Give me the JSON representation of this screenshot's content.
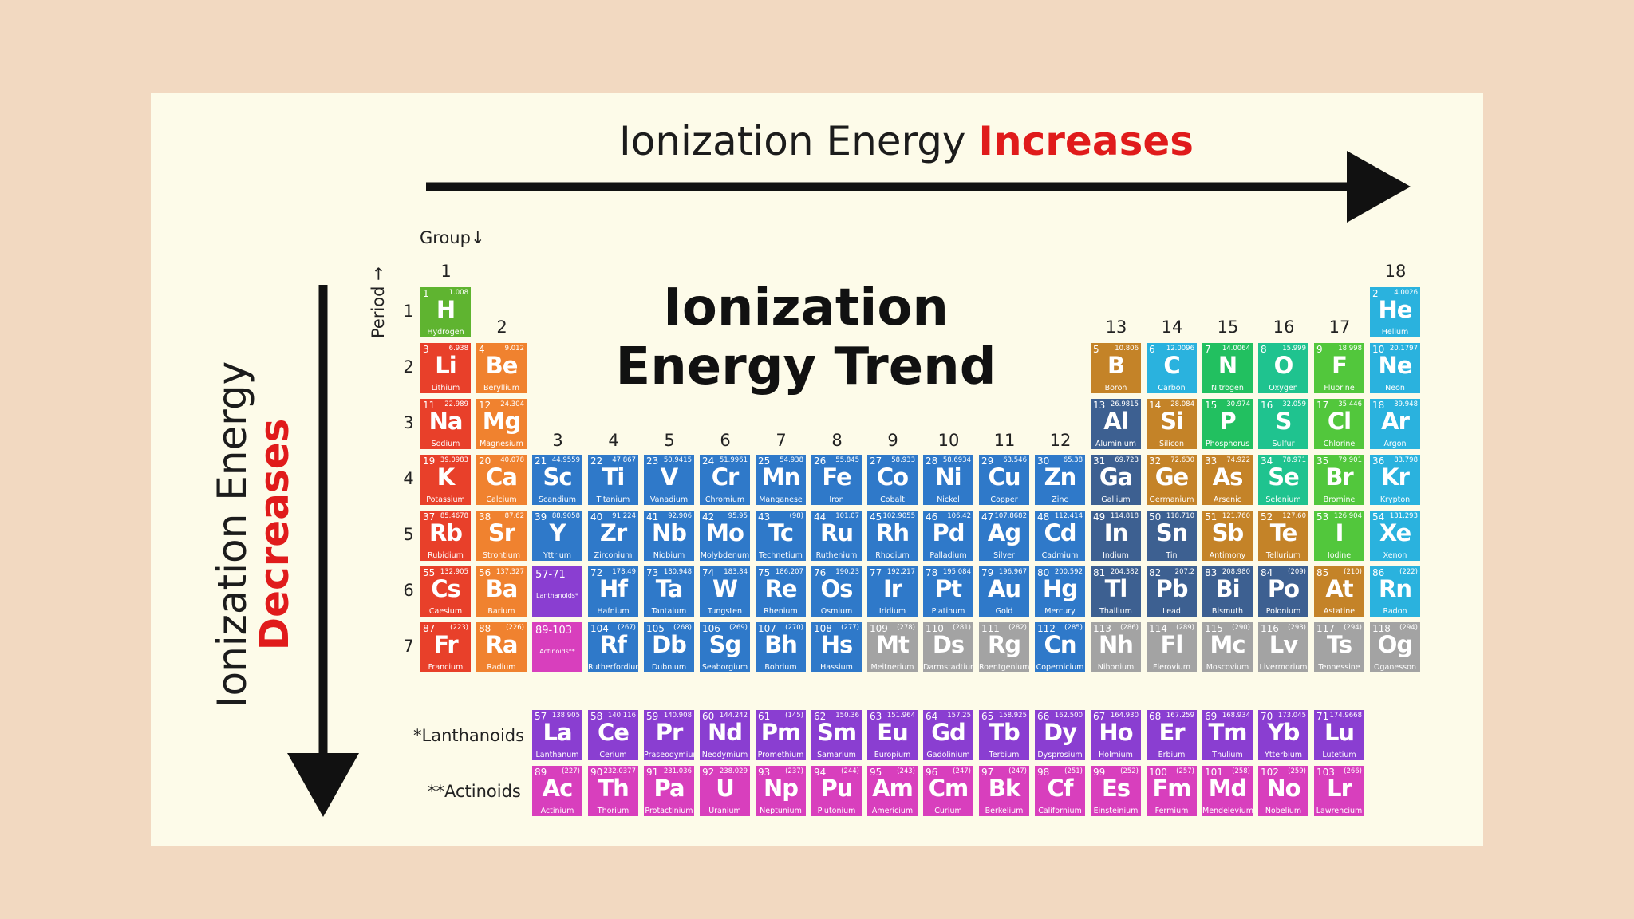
{
  "top_arrow_text": {
    "prefix": "Ionization Energy ",
    "emphasis": "Increases"
  },
  "side_arrow_text": {
    "prefix": "Ionization Energy",
    "emphasis": "Decreases"
  },
  "title_line1": "Ionization",
  "title_line2": "Energy Trend",
  "group_label": "Group",
  "period_label": "Period",
  "series_labels": {
    "lanthanoids": "*Lanthanoids",
    "actinoids": "**Actinoids"
  },
  "group_numbers": [
    "1",
    "2",
    "3",
    "4",
    "5",
    "6",
    "7",
    "8",
    "9",
    "10",
    "11",
    "12",
    "13",
    "14",
    "15",
    "16",
    "17",
    "18"
  ],
  "period_numbers": [
    "1",
    "2",
    "3",
    "4",
    "5",
    "6",
    "7"
  ],
  "colors": {
    "nonmetal": "#5fb430",
    "alkali": "#e8402a",
    "alkaline": "#f0822f",
    "transition": "#2f79c9",
    "metalloid": "#c48328",
    "post_transition": "#3d6091",
    "halogen": "#52c73c",
    "noble": "#2ab2de",
    "chalcogen": "#1fc38f",
    "pnictogen": "#22c060",
    "unknown": "#a3a3a3",
    "lanthanoid": "#8a3ed1",
    "actinoid": "#d83fbd",
    "arrow": "#111111",
    "accent": "#e01b1b"
  },
  "placeholders": [
    {
      "label": "57-71",
      "sub": "Lanthanoids*",
      "type": "lanthanoid"
    },
    {
      "label": "89-103",
      "sub": "Actinoids**",
      "type": "actinoid"
    }
  ],
  "elements": [
    {
      "n": "1",
      "s": "H",
      "name": "Hydrogen",
      "m": "1.008",
      "t": "nonmetal"
    },
    {
      "n": "2",
      "s": "He",
      "name": "Helium",
      "m": "4.0026",
      "t": "noble"
    },
    {
      "n": "3",
      "s": "Li",
      "name": "Lithium",
      "m": "6.938",
      "t": "alkali"
    },
    {
      "n": "4",
      "s": "Be",
      "name": "Beryllium",
      "m": "9.012",
      "t": "alkaline"
    },
    {
      "n": "5",
      "s": "B",
      "name": "Boron",
      "m": "10.806",
      "t": "metalloid"
    },
    {
      "n": "6",
      "s": "C",
      "name": "Carbon",
      "m": "12.0096",
      "t": "noble"
    },
    {
      "n": "7",
      "s": "N",
      "name": "Nitrogen",
      "m": "14.0064",
      "t": "pnictogen"
    },
    {
      "n": "8",
      "s": "O",
      "name": "Oxygen",
      "m": "15.999",
      "t": "chalcogen"
    },
    {
      "n": "9",
      "s": "F",
      "name": "Fluorine",
      "m": "18.998",
      "t": "halogen"
    },
    {
      "n": "10",
      "s": "Ne",
      "name": "Neon",
      "m": "20.1797",
      "t": "noble"
    },
    {
      "n": "11",
      "s": "Na",
      "name": "Sodium",
      "m": "22.989",
      "t": "alkali"
    },
    {
      "n": "12",
      "s": "Mg",
      "name": "Magnesium",
      "m": "24.304",
      "t": "alkaline"
    },
    {
      "n": "13",
      "s": "Al",
      "name": "Aluminium",
      "m": "26.9815",
      "t": "post_transition"
    },
    {
      "n": "14",
      "s": "Si",
      "name": "Silicon",
      "m": "28.084",
      "t": "metalloid"
    },
    {
      "n": "15",
      "s": "P",
      "name": "Phosphorus",
      "m": "30.974",
      "t": "pnictogen"
    },
    {
      "n": "16",
      "s": "S",
      "name": "Sulfur",
      "m": "32.059",
      "t": "chalcogen"
    },
    {
      "n": "17",
      "s": "Cl",
      "name": "Chlorine",
      "m": "35.446",
      "t": "halogen"
    },
    {
      "n": "18",
      "s": "Ar",
      "name": "Argon",
      "m": "39.948",
      "t": "noble"
    },
    {
      "n": "19",
      "s": "K",
      "name": "Potassium",
      "m": "39.0983",
      "t": "alkali"
    },
    {
      "n": "20",
      "s": "Ca",
      "name": "Calcium",
      "m": "40.078",
      "t": "alkaline"
    },
    {
      "n": "21",
      "s": "Sc",
      "name": "Scandium",
      "m": "44.9559",
      "t": "transition"
    },
    {
      "n": "22",
      "s": "Ti",
      "name": "Titanium",
      "m": "47.867",
      "t": "transition"
    },
    {
      "n": "23",
      "s": "V",
      "name": "Vanadium",
      "m": "50.9415",
      "t": "transition"
    },
    {
      "n": "24",
      "s": "Cr",
      "name": "Chromium",
      "m": "51.9961",
      "t": "transition"
    },
    {
      "n": "25",
      "s": "Mn",
      "name": "Manganese",
      "m": "54.938",
      "t": "transition"
    },
    {
      "n": "26",
      "s": "Fe",
      "name": "Iron",
      "m": "55.845",
      "t": "transition"
    },
    {
      "n": "27",
      "s": "Co",
      "name": "Cobalt",
      "m": "58.933",
      "t": "transition"
    },
    {
      "n": "28",
      "s": "Ni",
      "name": "Nickel",
      "m": "58.6934",
      "t": "transition"
    },
    {
      "n": "29",
      "s": "Cu",
      "name": "Copper",
      "m": "63.546",
      "t": "transition"
    },
    {
      "n": "30",
      "s": "Zn",
      "name": "Zinc",
      "m": "65.38",
      "t": "transition"
    },
    {
      "n": "31",
      "s": "Ga",
      "name": "Gallium",
      "m": "69.723",
      "t": "post_transition"
    },
    {
      "n": "32",
      "s": "Ge",
      "name": "Germanium",
      "m": "72.630",
      "t": "metalloid"
    },
    {
      "n": "33",
      "s": "As",
      "name": "Arsenic",
      "m": "74.922",
      "t": "metalloid"
    },
    {
      "n": "34",
      "s": "Se",
      "name": "Selenium",
      "m": "78.971",
      "t": "chalcogen"
    },
    {
      "n": "35",
      "s": "Br",
      "name": "Bromine",
      "m": "79.901",
      "t": "halogen"
    },
    {
      "n": "36",
      "s": "Kr",
      "name": "Krypton",
      "m": "83.798",
      "t": "noble"
    },
    {
      "n": "37",
      "s": "Rb",
      "name": "Rubidium",
      "m": "85.4678",
      "t": "alkali"
    },
    {
      "n": "38",
      "s": "Sr",
      "name": "Strontium",
      "m": "87.62",
      "t": "alkaline"
    },
    {
      "n": "39",
      "s": "Y",
      "name": "Yttrium",
      "m": "88.9058",
      "t": "transition"
    },
    {
      "n": "40",
      "s": "Zr",
      "name": "Zirconium",
      "m": "91.224",
      "t": "transition"
    },
    {
      "n": "41",
      "s": "Nb",
      "name": "Niobium",
      "m": "92.906",
      "t": "transition"
    },
    {
      "n": "42",
      "s": "Mo",
      "name": "Molybdenum",
      "m": "95.95",
      "t": "transition"
    },
    {
      "n": "43",
      "s": "Tc",
      "name": "Technetium",
      "m": "(98)",
      "t": "transition"
    },
    {
      "n": "44",
      "s": "Ru",
      "name": "Ruthenium",
      "m": "101.07",
      "t": "transition"
    },
    {
      "n": "45",
      "s": "Rh",
      "name": "Rhodium",
      "m": "102.9055",
      "t": "transition"
    },
    {
      "n": "46",
      "s": "Pd",
      "name": "Palladium",
      "m": "106.42",
      "t": "transition"
    },
    {
      "n": "47",
      "s": "Ag",
      "name": "Silver",
      "m": "107.8682",
      "t": "transition"
    },
    {
      "n": "48",
      "s": "Cd",
      "name": "Cadmium",
      "m": "112.414",
      "t": "transition"
    },
    {
      "n": "49",
      "s": "In",
      "name": "Indium",
      "m": "114.818",
      "t": "post_transition"
    },
    {
      "n": "50",
      "s": "Sn",
      "name": "Tin",
      "m": "118.710",
      "t": "post_transition"
    },
    {
      "n": "51",
      "s": "Sb",
      "name": "Antimony",
      "m": "121.760",
      "t": "metalloid"
    },
    {
      "n": "52",
      "s": "Te",
      "name": "Tellurium",
      "m": "127.60",
      "t": "metalloid"
    },
    {
      "n": "53",
      "s": "I",
      "name": "Iodine",
      "m": "126.904",
      "t": "halogen"
    },
    {
      "n": "54",
      "s": "Xe",
      "name": "Xenon",
      "m": "131.293",
      "t": "noble"
    },
    {
      "n": "55",
      "s": "Cs",
      "name": "Caesium",
      "m": "132.905",
      "t": "alkali"
    },
    {
      "n": "56",
      "s": "Ba",
      "name": "Barium",
      "m": "137.327",
      "t": "alkaline"
    },
    {
      "n": "72",
      "s": "Hf",
      "name": "Hafnium",
      "m": "178.49",
      "t": "transition"
    },
    {
      "n": "73",
      "s": "Ta",
      "name": "Tantalum",
      "m": "180.948",
      "t": "transition"
    },
    {
      "n": "74",
      "s": "W",
      "name": "Tungsten",
      "m": "183.84",
      "t": "transition"
    },
    {
      "n": "75",
      "s": "Re",
      "name": "Rhenium",
      "m": "186.207",
      "t": "transition"
    },
    {
      "n": "76",
      "s": "Os",
      "name": "Osmium",
      "m": "190.23",
      "t": "transition"
    },
    {
      "n": "77",
      "s": "Ir",
      "name": "Iridium",
      "m": "192.217",
      "t": "transition"
    },
    {
      "n": "78",
      "s": "Pt",
      "name": "Platinum",
      "m": "195.084",
      "t": "transition"
    },
    {
      "n": "79",
      "s": "Au",
      "name": "Gold",
      "m": "196.967",
      "t": "transition"
    },
    {
      "n": "80",
      "s": "Hg",
      "name": "Mercury",
      "m": "200.592",
      "t": "transition"
    },
    {
      "n": "81",
      "s": "Tl",
      "name": "Thallium",
      "m": "204.382",
      "t": "post_transition"
    },
    {
      "n": "82",
      "s": "Pb",
      "name": "Lead",
      "m": "207.2",
      "t": "post_transition"
    },
    {
      "n": "83",
      "s": "Bi",
      "name": "Bismuth",
      "m": "208.980",
      "t": "post_transition"
    },
    {
      "n": "84",
      "s": "Po",
      "name": "Polonium",
      "m": "(209)",
      "t": "post_transition"
    },
    {
      "n": "85",
      "s": "At",
      "name": "Astatine",
      "m": "(210)",
      "t": "metalloid"
    },
    {
      "n": "86",
      "s": "Rn",
      "name": "Radon",
      "m": "(222)",
      "t": "noble"
    },
    {
      "n": "87",
      "s": "Fr",
      "name": "Francium",
      "m": "(223)",
      "t": "alkali"
    },
    {
      "n": "88",
      "s": "Ra",
      "name": "Radium",
      "m": "(226)",
      "t": "alkaline"
    },
    {
      "n": "104",
      "s": "Rf",
      "name": "Rutherfordium",
      "m": "(267)",
      "t": "transition"
    },
    {
      "n": "105",
      "s": "Db",
      "name": "Dubnium",
      "m": "(268)",
      "t": "transition"
    },
    {
      "n": "106",
      "s": "Sg",
      "name": "Seaborgium",
      "m": "(269)",
      "t": "transition"
    },
    {
      "n": "107",
      "s": "Bh",
      "name": "Bohrium",
      "m": "(270)",
      "t": "transition"
    },
    {
      "n": "108",
      "s": "Hs",
      "name": "Hassium",
      "m": "(277)",
      "t": "transition"
    },
    {
      "n": "109",
      "s": "Mt",
      "name": "Meitnerium",
      "m": "(278)",
      "t": "unknown"
    },
    {
      "n": "110",
      "s": "Ds",
      "name": "Darmstadtium",
      "m": "(281)",
      "t": "unknown"
    },
    {
      "n": "111",
      "s": "Rg",
      "name": "Roentgenium",
      "m": "(282)",
      "t": "unknown"
    },
    {
      "n": "112",
      "s": "Cn",
      "name": "Copernicium",
      "m": "(285)",
      "t": "transition"
    },
    {
      "n": "113",
      "s": "Nh",
      "name": "Nihonium",
      "m": "(286)",
      "t": "unknown"
    },
    {
      "n": "114",
      "s": "Fl",
      "name": "Flerovium",
      "m": "(289)",
      "t": "unknown"
    },
    {
      "n": "115",
      "s": "Mc",
      "name": "Moscovium",
      "m": "(290)",
      "t": "unknown"
    },
    {
      "n": "116",
      "s": "Lv",
      "name": "Livermorium",
      "m": "(293)",
      "t": "unknown"
    },
    {
      "n": "117",
      "s": "Ts",
      "name": "Tennessine",
      "m": "(294)",
      "t": "unknown"
    },
    {
      "n": "118",
      "s": "Og",
      "name": "Oganesson",
      "m": "(294)",
      "t": "unknown"
    }
  ],
  "lanthanoids": [
    {
      "n": "57",
      "s": "La",
      "name": "Lanthanum",
      "m": "138.905"
    },
    {
      "n": "58",
      "s": "Ce",
      "name": "Cerium",
      "m": "140.116"
    },
    {
      "n": "59",
      "s": "Pr",
      "name": "Praseodymium",
      "m": "140.908"
    },
    {
      "n": "60",
      "s": "Nd",
      "name": "Neodymium",
      "m": "144.242"
    },
    {
      "n": "61",
      "s": "Pm",
      "name": "Promethium",
      "m": "(145)"
    },
    {
      "n": "62",
      "s": "Sm",
      "name": "Samarium",
      "m": "150.36"
    },
    {
      "n": "63",
      "s": "Eu",
      "name": "Europium",
      "m": "151.964"
    },
    {
      "n": "64",
      "s": "Gd",
      "name": "Gadolinium",
      "m": "157.25"
    },
    {
      "n": "65",
      "s": "Tb",
      "name": "Terbium",
      "m": "158.925"
    },
    {
      "n": "66",
      "s": "Dy",
      "name": "Dysprosium",
      "m": "162.500"
    },
    {
      "n": "67",
      "s": "Ho",
      "name": "Holmium",
      "m": "164.930"
    },
    {
      "n": "68",
      "s": "Er",
      "name": "Erbium",
      "m": "167.259"
    },
    {
      "n": "69",
      "s": "Tm",
      "name": "Thulium",
      "m": "168.934"
    },
    {
      "n": "70",
      "s": "Yb",
      "name": "Ytterbium",
      "m": "173.045"
    },
    {
      "n": "71",
      "s": "Lu",
      "name": "Lutetium",
      "m": "174.9668"
    }
  ],
  "actinoids": [
    {
      "n": "89",
      "s": "Ac",
      "name": "Actinium",
      "m": "(227)"
    },
    {
      "n": "90",
      "s": "Th",
      "name": "Thorium",
      "m": "232.0377"
    },
    {
      "n": "91",
      "s": "Pa",
      "name": "Protactinium",
      "m": "231.036"
    },
    {
      "n": "92",
      "s": "U",
      "name": "Uranium",
      "m": "238.029"
    },
    {
      "n": "93",
      "s": "Np",
      "name": "Neptunium",
      "m": "(237)"
    },
    {
      "n": "94",
      "s": "Pu",
      "name": "Plutonium",
      "m": "(244)"
    },
    {
      "n": "95",
      "s": "Am",
      "name": "Americium",
      "m": "(243)"
    },
    {
      "n": "96",
      "s": "Cm",
      "name": "Curium",
      "m": "(247)"
    },
    {
      "n": "97",
      "s": "Bk",
      "name": "Berkelium",
      "m": "(247)"
    },
    {
      "n": "98",
      "s": "Cf",
      "name": "Californium",
      "m": "(251)"
    },
    {
      "n": "99",
      "s": "Es",
      "name": "Einsteinium",
      "m": "(252)"
    },
    {
      "n": "100",
      "s": "Fm",
      "name": "Fermium",
      "m": "(257)"
    },
    {
      "n": "101",
      "s": "Md",
      "name": "Mendelevium",
      "m": "(258)"
    },
    {
      "n": "102",
      "s": "No",
      "name": "Nobelium",
      "m": "(259)"
    },
    {
      "n": "103",
      "s": "Lr",
      "name": "Lawrencium",
      "m": "(266)"
    }
  ]
}
